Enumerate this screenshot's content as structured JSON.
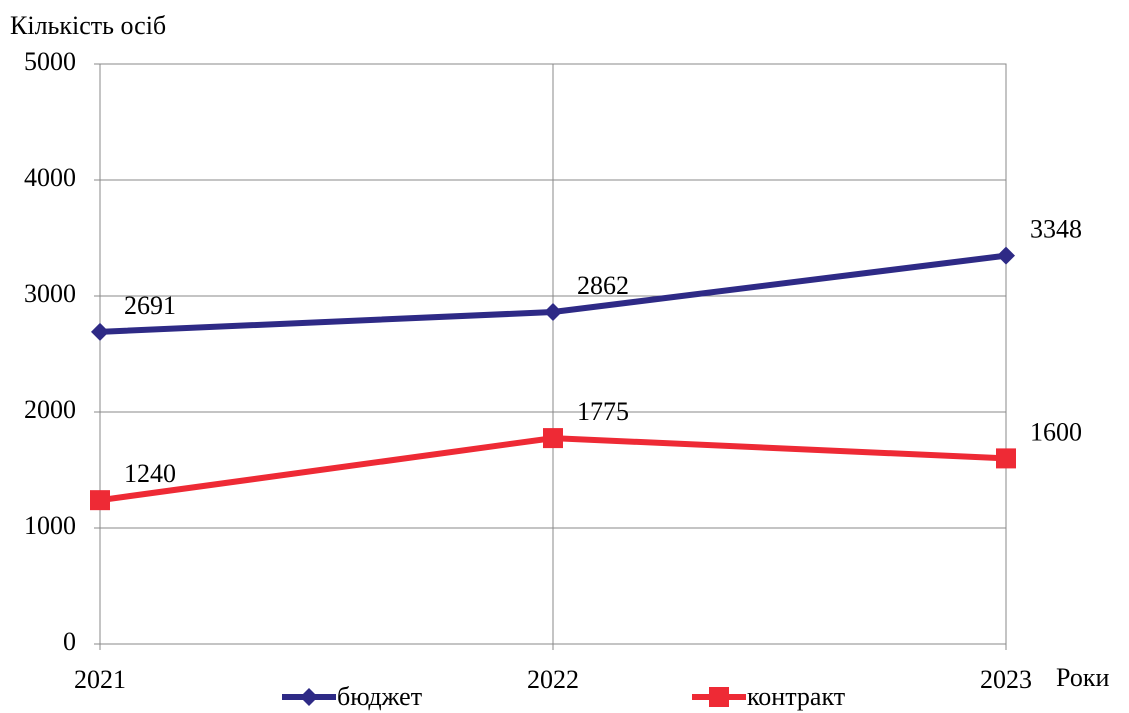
{
  "chart_data": {
    "type": "line",
    "y_label": "Кількість осіб",
    "x_label": "Роки",
    "categories": [
      "2021",
      "2022",
      "2023"
    ],
    "series": [
      {
        "name": "бюджет",
        "color": "#2e2a86",
        "marker": "diamond",
        "values": [
          2691,
          2862,
          3348
        ]
      },
      {
        "name": "контракт",
        "color": "#ee2a35",
        "marker": "square",
        "values": [
          1240,
          1775,
          1600
        ]
      }
    ],
    "ylim": [
      0,
      5000
    ],
    "yticks": [
      0,
      1000,
      2000,
      3000,
      4000,
      5000
    ],
    "grid": true,
    "legend": "bottom"
  }
}
